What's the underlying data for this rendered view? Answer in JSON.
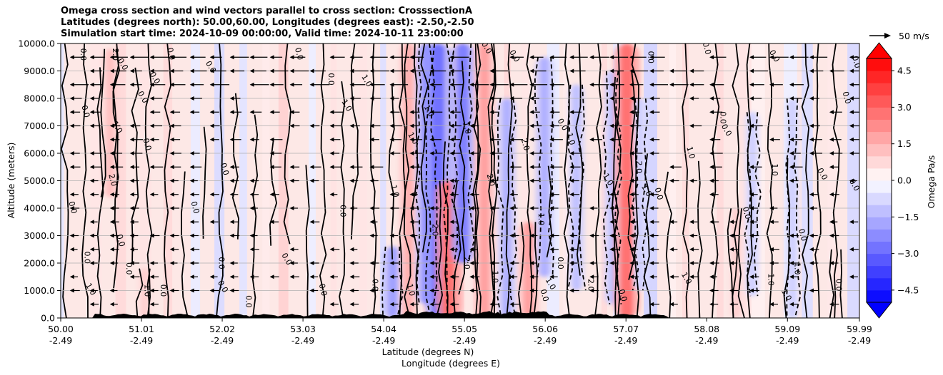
{
  "chart_data": {
    "type": "contour",
    "title": [
      "Omega cross section and wind vectors parallel to cross section: CrosssectionA",
      "Latitudes (degrees north): 50.00,60.00, Longitudes (degrees east): -2.50,-2.50",
      "Simulation start time: 2024-10-09 00:00:00, Valid time: 2024-10-11 23:00:00"
    ],
    "ylabel": "Altitude (meters)",
    "xlabel_lat": "Latitude (degrees N)",
    "xlabel_lon": "Longitude (degrees E)",
    "xlim": [
      50.0,
      59.99
    ],
    "ylim": [
      0,
      10000
    ],
    "grid": true,
    "x_ticks": [
      {
        "lat": "50.00",
        "lon": "-2.49",
        "value": 50.0
      },
      {
        "lat": "51.01",
        "lon": "-2.49",
        "value": 51.01
      },
      {
        "lat": "52.02",
        "lon": "-2.49",
        "value": 52.02
      },
      {
        "lat": "53.03",
        "lon": "-2.49",
        "value": 53.03
      },
      {
        "lat": "54.04",
        "lon": "-2.49",
        "value": 54.04
      },
      {
        "lat": "55.05",
        "lon": "-2.49",
        "value": 55.05
      },
      {
        "lat": "56.06",
        "lon": "-2.49",
        "value": 56.06
      },
      {
        "lat": "57.07",
        "lon": "-2.49",
        "value": 57.07
      },
      {
        "lat": "58.08",
        "lon": "-2.49",
        "value": 58.08
      },
      {
        "lat": "59.09",
        "lon": "-2.49",
        "value": 59.09
      },
      {
        "lat": "59.99",
        "lon": "-2.49",
        "value": 59.99
      }
    ],
    "y_ticks": [
      {
        "label": "0.0",
        "value": 0
      },
      {
        "label": "1000.0",
        "value": 1000
      },
      {
        "label": "2000.0",
        "value": 2000
      },
      {
        "label": "3000.0",
        "value": 3000
      },
      {
        "label": "4000.0",
        "value": 4000
      },
      {
        "label": "5000.0",
        "value": 5000
      },
      {
        "label": "6000.0",
        "value": 6000
      },
      {
        "label": "7000.0",
        "value": 7000
      },
      {
        "label": "8000.0",
        "value": 8000
      },
      {
        "label": "9000.0",
        "value": 9000
      },
      {
        "label": "10000.0",
        "value": 10000
      }
    ],
    "colorbar": {
      "label": "Omega Pa/s",
      "range": [
        -5.0,
        5.0
      ],
      "ticks": [
        {
          "label": "4.5",
          "value": 4.5
        },
        {
          "label": "3.0",
          "value": 3.0
        },
        {
          "label": "1.5",
          "value": 1.5
        },
        {
          "label": "0.0",
          "value": 0.0
        },
        {
          "label": "−1.5",
          "value": -1.5
        },
        {
          "label": "−3.0",
          "value": -3.0
        },
        {
          "label": "−4.5",
          "value": -4.5
        }
      ],
      "levels": 20,
      "colormap": "bwr",
      "extend": "both"
    },
    "quiver_key": {
      "label": "50 m/s",
      "speed": 50
    },
    "omega_features": [
      {
        "lat": 50.62,
        "z_bottom": 4400,
        "z_top": 9800,
        "omega": 2.0
      },
      {
        "lat": 51.05,
        "z_bottom": 0,
        "z_top": 1800,
        "omega": 1.5
      },
      {
        "lat": 54.15,
        "z_bottom": 0,
        "z_top": 2600,
        "omega": -3.0
      },
      {
        "lat": 54.35,
        "z_bottom": 0,
        "z_top": 10000,
        "omega": 2.5
      },
      {
        "lat": 54.58,
        "z_bottom": 500,
        "z_top": 10000,
        "omega": -3.5
      },
      {
        "lat": 54.72,
        "z_bottom": 0,
        "z_top": 10000,
        "omega": -4.5
      },
      {
        "lat": 54.85,
        "z_bottom": 0,
        "z_top": 5000,
        "omega": 4.5
      },
      {
        "lat": 55.03,
        "z_bottom": 2000,
        "z_top": 10000,
        "omega": -4.0
      },
      {
        "lat": 55.3,
        "z_bottom": 0,
        "z_top": 10000,
        "omega": 3.0
      },
      {
        "lat": 55.58,
        "z_bottom": 0,
        "z_top": 8000,
        "omega": -2.5
      },
      {
        "lat": 55.85,
        "z_bottom": 0,
        "z_top": 3500,
        "omega": 3.0
      },
      {
        "lat": 56.05,
        "z_bottom": 1500,
        "z_top": 9500,
        "omega": -2.5
      },
      {
        "lat": 56.45,
        "z_bottom": 1000,
        "z_top": 8500,
        "omega": -2.0
      },
      {
        "lat": 56.9,
        "z_bottom": 500,
        "z_top": 9000,
        "omega": -2.0
      },
      {
        "lat": 57.08,
        "z_bottom": 0,
        "z_top": 10000,
        "omega": 4.5
      },
      {
        "lat": 57.25,
        "z_bottom": 1000,
        "z_top": 8000,
        "omega": -1.5
      },
      {
        "lat": 58.45,
        "z_bottom": 0,
        "z_top": 4000,
        "omega": 1.5
      },
      {
        "lat": 58.65,
        "z_bottom": 800,
        "z_top": 7500,
        "omega": -1.5
      },
      {
        "lat": 59.15,
        "z_bottom": 0,
        "z_top": 8000,
        "omega": -1.5
      },
      {
        "lat": 59.7,
        "z_bottom": 0,
        "z_top": 2500,
        "omega": 1.0
      }
    ],
    "contour_labels": [
      {
        "text": "0.0",
        "lat": 50.12,
        "z": 4000
      },
      {
        "text": "0.0",
        "lat": 50.3,
        "z": 2200
      },
      {
        "text": "1.0",
        "lat": 50.35,
        "z": 1000
      },
      {
        "text": "0.0",
        "lat": 50.28,
        "z": 7500
      },
      {
        "text": "0.0",
        "lat": 50.25,
        "z": 9600
      },
      {
        "text": "1.0",
        "lat": 50.68,
        "z": 6900
      },
      {
        "text": "2.0",
        "lat": 50.62,
        "z": 5000
      },
      {
        "text": "2.0",
        "lat": 50.65,
        "z": 9600
      },
      {
        "text": "0.0",
        "lat": 50.75,
        "z": 9200
      },
      {
        "text": "0.0",
        "lat": 50.72,
        "z": 2800
      },
      {
        "text": "0.0",
        "lat": 50.82,
        "z": 1800
      },
      {
        "text": "0.0",
        "lat": 51.0,
        "z": 8000
      },
      {
        "text": "0.0",
        "lat": 51.05,
        "z": 6300
      },
      {
        "text": "1.0",
        "lat": 51.05,
        "z": 1000
      },
      {
        "text": "0.0",
        "lat": 51.15,
        "z": 8700
      },
      {
        "text": "0.0",
        "lat": 51.35,
        "z": 9600
      },
      {
        "text": "0.0",
        "lat": 51.25,
        "z": 1000
      },
      {
        "text": "0.0",
        "lat": 51.85,
        "z": 9100
      },
      {
        "text": "0.0",
        "lat": 51.65,
        "z": 4000
      },
      {
        "text": "0.0",
        "lat": 51.98,
        "z": 2000
      },
      {
        "text": "0.0",
        "lat": 52.0,
        "z": 1100
      },
      {
        "text": "0.0",
        "lat": 52.02,
        "z": 5400
      },
      {
        "text": "0.0",
        "lat": 52.32,
        "z": 600
      },
      {
        "text": "0.0",
        "lat": 52.8,
        "z": 2100
      },
      {
        "text": "0.0",
        "lat": 52.95,
        "z": 9600
      },
      {
        "text": "0.0",
        "lat": 53.35,
        "z": 8700
      },
      {
        "text": "1.0",
        "lat": 53.55,
        "z": 7700
      },
      {
        "text": "0.0",
        "lat": 53.25,
        "z": 1000
      },
      {
        "text": "0.0",
        "lat": 53.5,
        "z": 3900
      },
      {
        "text": "1.0",
        "lat": 53.8,
        "z": 8600
      },
      {
        "text": "1.0",
        "lat": 54.15,
        "z": 4600
      },
      {
        "text": "0.0",
        "lat": 53.9,
        "z": 1200
      },
      {
        "text": "1.0",
        "lat": 54.58,
        "z": 7500
      },
      {
        "text": "1.0",
        "lat": 54.35,
        "z": 1000
      },
      {
        "text": "2.0",
        "lat": 54.65,
        "z": 3200
      },
      {
        "text": "1.0",
        "lat": 54.38,
        "z": 6500
      },
      {
        "text": "1.0",
        "lat": 55.05,
        "z": 6900
      },
      {
        "text": "2.0",
        "lat": 55.05,
        "z": 2000
      },
      {
        "text": "0.0",
        "lat": 55.3,
        "z": 9800
      },
      {
        "text": "2.0",
        "lat": 55.35,
        "z": 5000
      },
      {
        "text": "1.0",
        "lat": 55.4,
        "z": 1500
      },
      {
        "text": "0.0",
        "lat": 55.65,
        "z": 9500
      },
      {
        "text": "2.0",
        "lat": 55.78,
        "z": 6300
      },
      {
        "text": "1.0",
        "lat": 55.98,
        "z": 3600
      },
      {
        "text": "1.0",
        "lat": 56.1,
        "z": 1200
      },
      {
        "text": "0.0",
        "lat": 56.02,
        "z": 800
      },
      {
        "text": "0.0",
        "lat": 56.22,
        "z": 2000
      },
      {
        "text": "0.0",
        "lat": 56.25,
        "z": 7000
      },
      {
        "text": "1.0",
        "lat": 56.35,
        "z": 6500
      },
      {
        "text": "2.0",
        "lat": 56.6,
        "z": 1200
      },
      {
        "text": "1.0",
        "lat": 56.82,
        "z": 5000
      },
      {
        "text": "0.0",
        "lat": 57.0,
        "z": 800
      },
      {
        "text": "2.0",
        "lat": 57.2,
        "z": 5500
      },
      {
        "text": "1.0",
        "lat": 57.3,
        "z": 4600
      },
      {
        "text": "0.0",
        "lat": 57.45,
        "z": 4500
      },
      {
        "text": "0.0",
        "lat": 57.35,
        "z": 9500
      },
      {
        "text": "1.0",
        "lat": 57.8,
        "z": 1400
      },
      {
        "text": "1.0",
        "lat": 57.85,
        "z": 6000
      },
      {
        "text": "0.0",
        "lat": 58.25,
        "z": 7300
      },
      {
        "text": "0.0",
        "lat": 58.3,
        "z": 6800
      },
      {
        "text": "0.0",
        "lat": 58.05,
        "z": 9800
      },
      {
        "text": "1.0",
        "lat": 58.9,
        "z": 5400
      },
      {
        "text": "0.0",
        "lat": 58.9,
        "z": 9500
      },
      {
        "text": "0.0",
        "lat": 58.55,
        "z": 3800
      },
      {
        "text": "1.0",
        "lat": 58.85,
        "z": 1400
      },
      {
        "text": "1.0",
        "lat": 59.05,
        "z": 800
      },
      {
        "text": "0.0",
        "lat": 59.25,
        "z": 3000
      },
      {
        "text": "1.0",
        "lat": 59.18,
        "z": 1800
      },
      {
        "text": "0.0",
        "lat": 59.5,
        "z": 5200
      },
      {
        "text": "0.0",
        "lat": 59.8,
        "z": 8000
      },
      {
        "text": "0.0",
        "lat": 59.7,
        "z": 1200
      },
      {
        "text": "0.0",
        "lat": 59.9,
        "z": 4800
      },
      {
        "text": "0.0",
        "lat": 59.92,
        "z": 9300
      }
    ]
  }
}
